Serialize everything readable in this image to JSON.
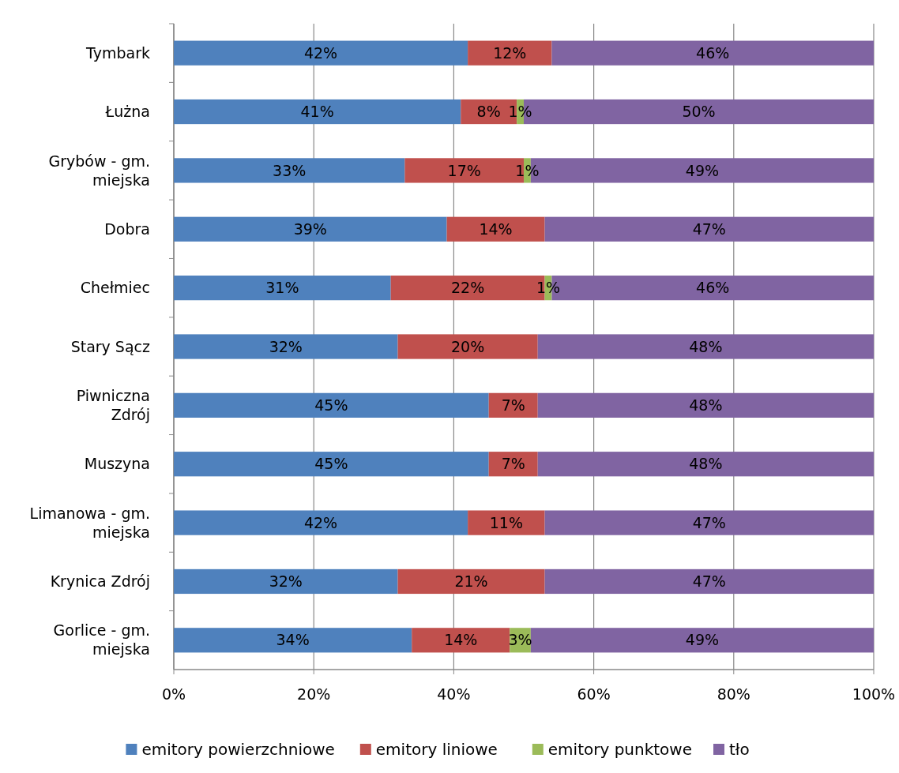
{
  "chart_data": {
    "type": "bar",
    "orientation": "horizontal",
    "stacked": true,
    "categories": [
      "Tymbark",
      "Łużna",
      "Grybów - gm. miejska",
      "Dobra",
      "Chełmiec",
      "Stary Sącz",
      "Piwniczna Zdrój",
      "Muszyna",
      "Limanowa - gm. miejska",
      "Krynica Zdrój",
      "Gorlice - gm. miejska"
    ],
    "series": [
      {
        "name": "emitory powierzchniowe",
        "color": "#4f81bd",
        "values": [
          42,
          41,
          33,
          39,
          31,
          32,
          45,
          45,
          42,
          32,
          34
        ],
        "value_labels": [
          "42%",
          "41%",
          "33%",
          "39%",
          "31%",
          "32%",
          "45%",
          "45%",
          "42%",
          "32%",
          "34%"
        ]
      },
      {
        "name": "emitory liniowe",
        "color": "#c0504d",
        "values": [
          12,
          8,
          17,
          14,
          22,
          20,
          7,
          7,
          11,
          21,
          14
        ],
        "value_labels": [
          "12%",
          "8%",
          "17%",
          "14%",
          "22%",
          "20%",
          "7%",
          "7%",
          "11%",
          "21%",
          "14%"
        ]
      },
      {
        "name": "emitory punktowe",
        "color": "#9bbb59",
        "values": [
          null,
          1,
          1,
          null,
          1,
          null,
          null,
          null,
          null,
          null,
          3
        ],
        "value_labels": [
          null,
          "1%",
          "1%",
          null,
          "1%",
          null,
          null,
          null,
          null,
          null,
          "3%"
        ]
      },
      {
        "name": "tło",
        "color": "#8064a2",
        "values": [
          46,
          50,
          49,
          47,
          46,
          48,
          48,
          48,
          47,
          47,
          49
        ],
        "value_labels": [
          "46%",
          "50%",
          "49%",
          "47%",
          "46%",
          "48%",
          "48%",
          "48%",
          "47%",
          "47%",
          "49%"
        ]
      }
    ],
    "xlim": [
      0,
      100
    ],
    "xticks": [
      {
        "value": 0,
        "label": "0%"
      },
      {
        "value": 20,
        "label": "20%"
      },
      {
        "value": 40,
        "label": "40%"
      },
      {
        "value": 60,
        "label": "60%"
      },
      {
        "value": 80,
        "label": "80%"
      },
      {
        "value": 100,
        "label": "100%"
      }
    ],
    "grid": "x",
    "legend": "bottom"
  }
}
